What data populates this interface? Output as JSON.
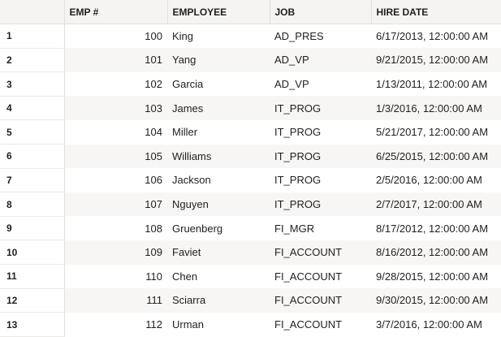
{
  "table": {
    "columns": [
      {
        "key": "rownum",
        "label": ""
      },
      {
        "key": "emp_no",
        "label": "EMP #"
      },
      {
        "key": "employee",
        "label": "EMPLOYEE"
      },
      {
        "key": "job",
        "label": "JOB"
      },
      {
        "key": "hire_date",
        "label": "HIRE DATE"
      }
    ],
    "rows": [
      {
        "rownum": "1",
        "emp_no": "100",
        "employee": "King",
        "job": "AD_PRES",
        "hire_date": "6/17/2013, 12:00:00 AM"
      },
      {
        "rownum": "2",
        "emp_no": "101",
        "employee": "Yang",
        "job": "AD_VP",
        "hire_date": "9/21/2015, 12:00:00 AM"
      },
      {
        "rownum": "3",
        "emp_no": "102",
        "employee": "Garcia",
        "job": "AD_VP",
        "hire_date": "1/13/2011, 12:00:00 AM"
      },
      {
        "rownum": "4",
        "emp_no": "103",
        "employee": "James",
        "job": "IT_PROG",
        "hire_date": "1/3/2016, 12:00:00 AM"
      },
      {
        "rownum": "5",
        "emp_no": "104",
        "employee": "Miller",
        "job": "IT_PROG",
        "hire_date": "5/21/2017, 12:00:00 AM"
      },
      {
        "rownum": "6",
        "emp_no": "105",
        "employee": "Williams",
        "job": "IT_PROG",
        "hire_date": "6/25/2015, 12:00:00 AM"
      },
      {
        "rownum": "7",
        "emp_no": "106",
        "employee": "Jackson",
        "job": "IT_PROG",
        "hire_date": "2/5/2016, 12:00:00 AM"
      },
      {
        "rownum": "8",
        "emp_no": "107",
        "employee": "Nguyen",
        "job": "IT_PROG",
        "hire_date": "2/7/2017, 12:00:00 AM"
      },
      {
        "rownum": "9",
        "emp_no": "108",
        "employee": "Gruenberg",
        "job": "FI_MGR",
        "hire_date": "8/17/2012, 12:00:00 AM"
      },
      {
        "rownum": "10",
        "emp_no": "109",
        "employee": "Faviet",
        "job": "FI_ACCOUNT",
        "hire_date": "8/16/2012, 12:00:00 AM"
      },
      {
        "rownum": "11",
        "emp_no": "110",
        "employee": "Chen",
        "job": "FI_ACCOUNT",
        "hire_date": "9/28/2015, 12:00:00 AM"
      },
      {
        "rownum": "12",
        "emp_no": "111",
        "employee": "Sciarra",
        "job": "FI_ACCOUNT",
        "hire_date": "9/30/2015, 12:00:00 AM"
      },
      {
        "rownum": "13",
        "emp_no": "112",
        "employee": "Urman",
        "job": "FI_ACCOUNT",
        "hire_date": "3/7/2016, 12:00:00 AM"
      }
    ]
  },
  "colors": {
    "header_bg": "#f5f4f2",
    "stripe_bg": "#f7f6f4",
    "border": "#e2e0dd"
  }
}
